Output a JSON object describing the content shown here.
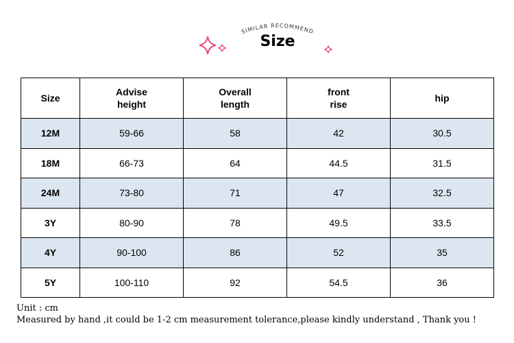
{
  "header": {
    "subtitle": "SIMILAR RECOMMEND",
    "title": "Size",
    "accent_color": "#e8507a"
  },
  "table": {
    "columns": [
      {
        "line1": "Size",
        "line2": ""
      },
      {
        "line1": "Advise",
        "line2": "height"
      },
      {
        "line1": "Overall",
        "line2": "length"
      },
      {
        "line1": "front",
        "line2": "rise"
      },
      {
        "line1": "hip",
        "line2": ""
      }
    ],
    "rows": [
      [
        "12M",
        "59-66",
        "58",
        "42",
        "30.5"
      ],
      [
        "18M",
        "66-73",
        "64",
        "44.5",
        "31.5"
      ],
      [
        "24M",
        "73-80",
        "71",
        "47",
        "32.5"
      ],
      [
        "3Y",
        "80-90",
        "78",
        "49.5",
        "33.5"
      ],
      [
        "4Y",
        "90-100",
        "86",
        "52",
        "35"
      ],
      [
        "5Y",
        "100-110",
        "92",
        "54.5",
        "36"
      ]
    ],
    "shade_color": "#dce6f0"
  },
  "notes": {
    "unit": "Unit : cm",
    "disclaimer": "Measured by hand ,it could be 1-2 cm measurement tolerance,please kindly understand , Thank you !"
  }
}
